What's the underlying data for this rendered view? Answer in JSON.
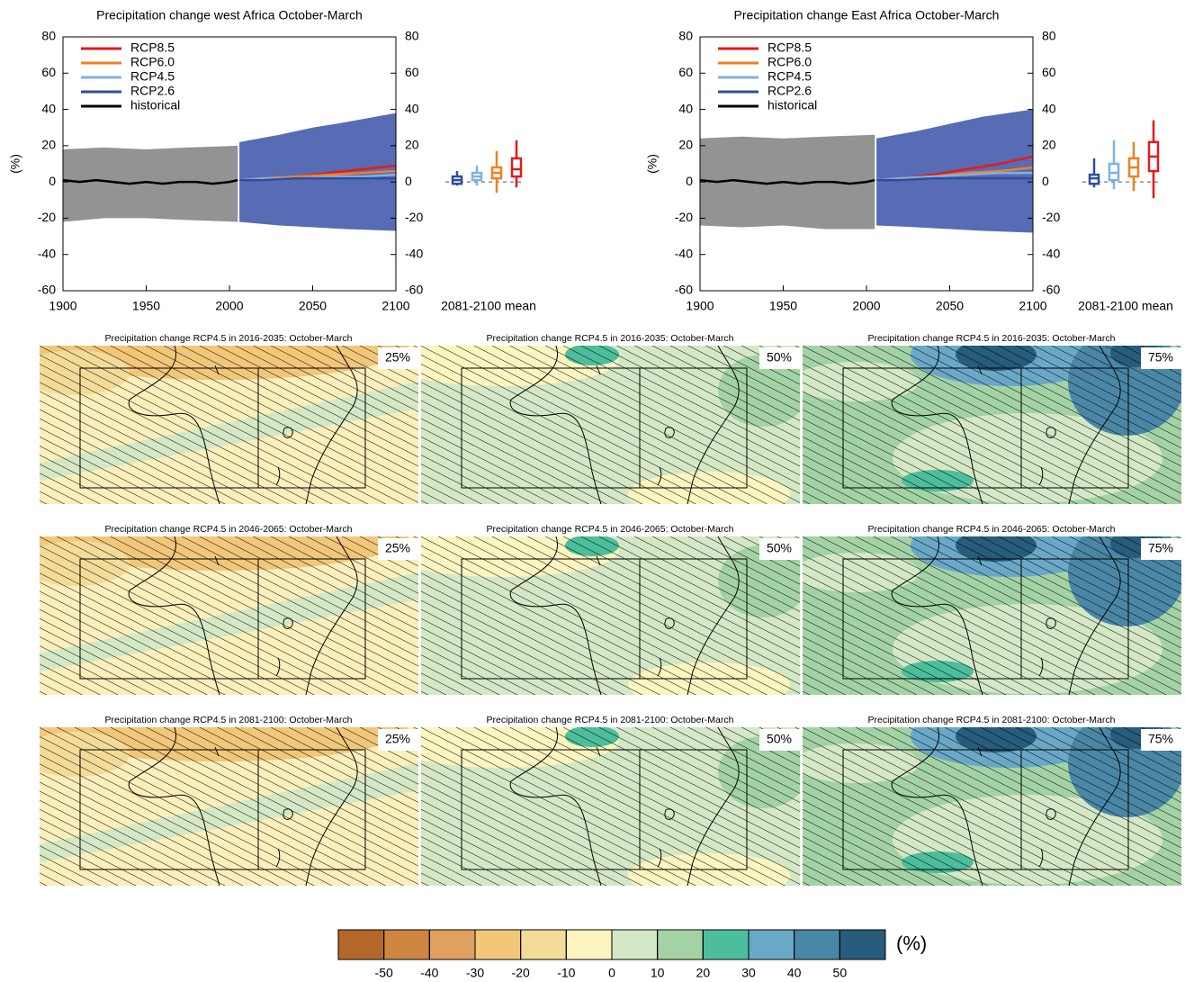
{
  "chart_data": [
    {
      "type": "line",
      "title": "Precipitation change west Africa October-March",
      "ylabel": "(%)",
      "xlim": [
        1900,
        2100
      ],
      "xticks": [
        1900,
        1950,
        2000,
        2050,
        2100
      ],
      "ylim": [
        -60,
        80
      ],
      "yticks": [
        -60,
        -40,
        -20,
        0,
        20,
        40,
        60,
        80
      ],
      "y2lim": [
        -60,
        80
      ],
      "y2ticks": [
        -60,
        -40,
        -20,
        0,
        20,
        40,
        60,
        80
      ],
      "legend": "upper left",
      "box_label": "2081-2100 mean",
      "bands": [
        {
          "color": "#808080",
          "x": [
            1900,
            1925,
            1950,
            1975,
            2005
          ],
          "low": [
            -22,
            -20,
            -20,
            -21,
            -22
          ],
          "high": [
            18,
            19,
            18,
            19,
            20
          ]
        },
        {
          "color": "#3a52a8",
          "x": [
            2006,
            2030,
            2050,
            2070,
            2100
          ],
          "low": [
            -22,
            -24,
            -25,
            -26,
            -27
          ],
          "high": [
            22,
            26,
            30,
            33,
            38
          ]
        }
      ],
      "series": [
        {
          "name": "RCP8.5",
          "color": "#e41a1c",
          "x": [
            2006,
            2020,
            2040,
            2060,
            2080,
            2100
          ],
          "values": [
            1,
            2,
            3,
            5,
            7,
            9
          ],
          "box": [
            -3,
            3,
            7,
            13,
            23
          ]
        },
        {
          "name": "RCP6.0",
          "color": "#f07f22",
          "x": [
            2006,
            2020,
            2040,
            2060,
            2080,
            2100
          ],
          "values": [
            1,
            2,
            3,
            4,
            5,
            6
          ],
          "box": [
            -6,
            2,
            5,
            8,
            17
          ]
        },
        {
          "name": "RCP4.5",
          "color": "#7fb2e0",
          "x": [
            2006,
            2020,
            2040,
            2060,
            2080,
            2100
          ],
          "values": [
            1,
            2,
            2,
            3,
            3,
            4
          ],
          "box": [
            -2,
            1,
            3,
            5,
            9
          ]
        },
        {
          "name": "RCP2.6",
          "color": "#2f4da0",
          "x": [
            2006,
            2020,
            2040,
            2060,
            2080,
            2100
          ],
          "values": [
            1,
            1,
            2,
            2,
            2,
            2
          ],
          "box": [
            -2,
            -1,
            1,
            3,
            6
          ]
        },
        {
          "name": "historical",
          "color": "#000000",
          "x": [
            1900,
            1910,
            1920,
            1930,
            1940,
            1950,
            1960,
            1970,
            1980,
            1990,
            2000,
            2005
          ],
          "values": [
            1,
            0,
            1,
            0,
            -1,
            0,
            -1,
            0,
            0,
            -1,
            0,
            1
          ]
        }
      ]
    },
    {
      "type": "line",
      "title": "Precipitation change East Africa October-March",
      "ylabel": "(%)",
      "xlim": [
        1900,
        2100
      ],
      "xticks": [
        1900,
        1950,
        2000,
        2050,
        2100
      ],
      "ylim": [
        -60,
        80
      ],
      "yticks": [
        -60,
        -40,
        -20,
        0,
        20,
        40,
        60,
        80
      ],
      "y2lim": [
        -60,
        80
      ],
      "y2ticks": [
        -60,
        -40,
        -20,
        0,
        20,
        40,
        60,
        80
      ],
      "legend": "upper left",
      "box_label": "2081-2100 mean",
      "bands": [
        {
          "color": "#808080",
          "x": [
            1900,
            1925,
            1950,
            1975,
            2005
          ],
          "low": [
            -24,
            -25,
            -24,
            -26,
            -26
          ],
          "high": [
            24,
            25,
            24,
            25,
            26
          ]
        },
        {
          "color": "#3a52a8",
          "x": [
            2006,
            2030,
            2050,
            2070,
            2100
          ],
          "low": [
            -24,
            -25,
            -26,
            -27,
            -28
          ],
          "high": [
            24,
            28,
            32,
            36,
            40
          ]
        }
      ],
      "series": [
        {
          "name": "RCP8.5",
          "color": "#e41a1c",
          "x": [
            2006,
            2020,
            2040,
            2060,
            2080,
            2100
          ],
          "values": [
            1,
            2,
            4,
            7,
            10,
            14
          ],
          "box": [
            -9,
            6,
            14,
            22,
            34
          ]
        },
        {
          "name": "RCP6.0",
          "color": "#f07f22",
          "x": [
            2006,
            2020,
            2040,
            2060,
            2080,
            2100
          ],
          "values": [
            1,
            2,
            3,
            5,
            6,
            8
          ],
          "box": [
            -5,
            3,
            8,
            13,
            22
          ]
        },
        {
          "name": "RCP4.5",
          "color": "#7fb2e0",
          "x": [
            2006,
            2020,
            2040,
            2060,
            2080,
            2100
          ],
          "values": [
            1,
            2,
            3,
            4,
            5,
            5
          ],
          "box": [
            -4,
            1,
            5,
            10,
            23
          ]
        },
        {
          "name": "RCP2.6",
          "color": "#2f4da0",
          "x": [
            2006,
            2020,
            2040,
            2060,
            2080,
            2100
          ],
          "values": [
            1,
            1,
            2,
            2,
            2,
            2
          ],
          "box": [
            -3,
            -1,
            2,
            4,
            13
          ]
        },
        {
          "name": "historical",
          "color": "#000000",
          "x": [
            1900,
            1910,
            1920,
            1930,
            1940,
            1950,
            1960,
            1970,
            1980,
            1990,
            2000,
            2005
          ],
          "values": [
            1,
            0,
            1,
            0,
            -1,
            0,
            -1,
            0,
            0,
            -1,
            0,
            1
          ]
        }
      ]
    },
    {
      "type": "map",
      "title": "Precipitation change RCP4.5 in 2016-2035: October-March",
      "label": "25%"
    },
    {
      "type": "map",
      "title": "Precipitation change RCP4.5 in 2016-2035: October-March",
      "label": "50%"
    },
    {
      "type": "map",
      "title": "Precipitation change RCP4.5 in 2016-2035: October-March",
      "label": "75%"
    },
    {
      "type": "map",
      "title": "Precipitation change RCP4.5 in 2046-2065: October-March",
      "label": "25%"
    },
    {
      "type": "map",
      "title": "Precipitation change RCP4.5 in 2046-2065: October-March",
      "label": "50%"
    },
    {
      "type": "map",
      "title": "Precipitation change RCP4.5 in 2046-2065: October-March",
      "label": "75%"
    },
    {
      "type": "map",
      "title": "Precipitation change RCP4.5 in 2081-2100: October-March",
      "label": "25%"
    },
    {
      "type": "map",
      "title": "Precipitation change RCP4.5 in 2081-2100: October-March",
      "label": "50%"
    },
    {
      "type": "map",
      "title": "Precipitation change RCP4.5 in 2081-2100: October-March",
      "label": "75%"
    },
    {
      "type": "colorbar",
      "unit": "(%)",
      "lim": [
        -60,
        60
      ],
      "ticks": [
        -50,
        -40,
        -30,
        -20,
        -10,
        0,
        10,
        20,
        30,
        40,
        50
      ],
      "colors": [
        "#b5672a",
        "#cd8540",
        "#e0a060",
        "#f2c77a",
        "#f4dc98",
        "#fdf5c0",
        "#d5e8c6",
        "#a3d3a5",
        "#4cbe9c",
        "#6aa8c8",
        "#4a87a6",
        "#275c7c"
      ]
    }
  ]
}
